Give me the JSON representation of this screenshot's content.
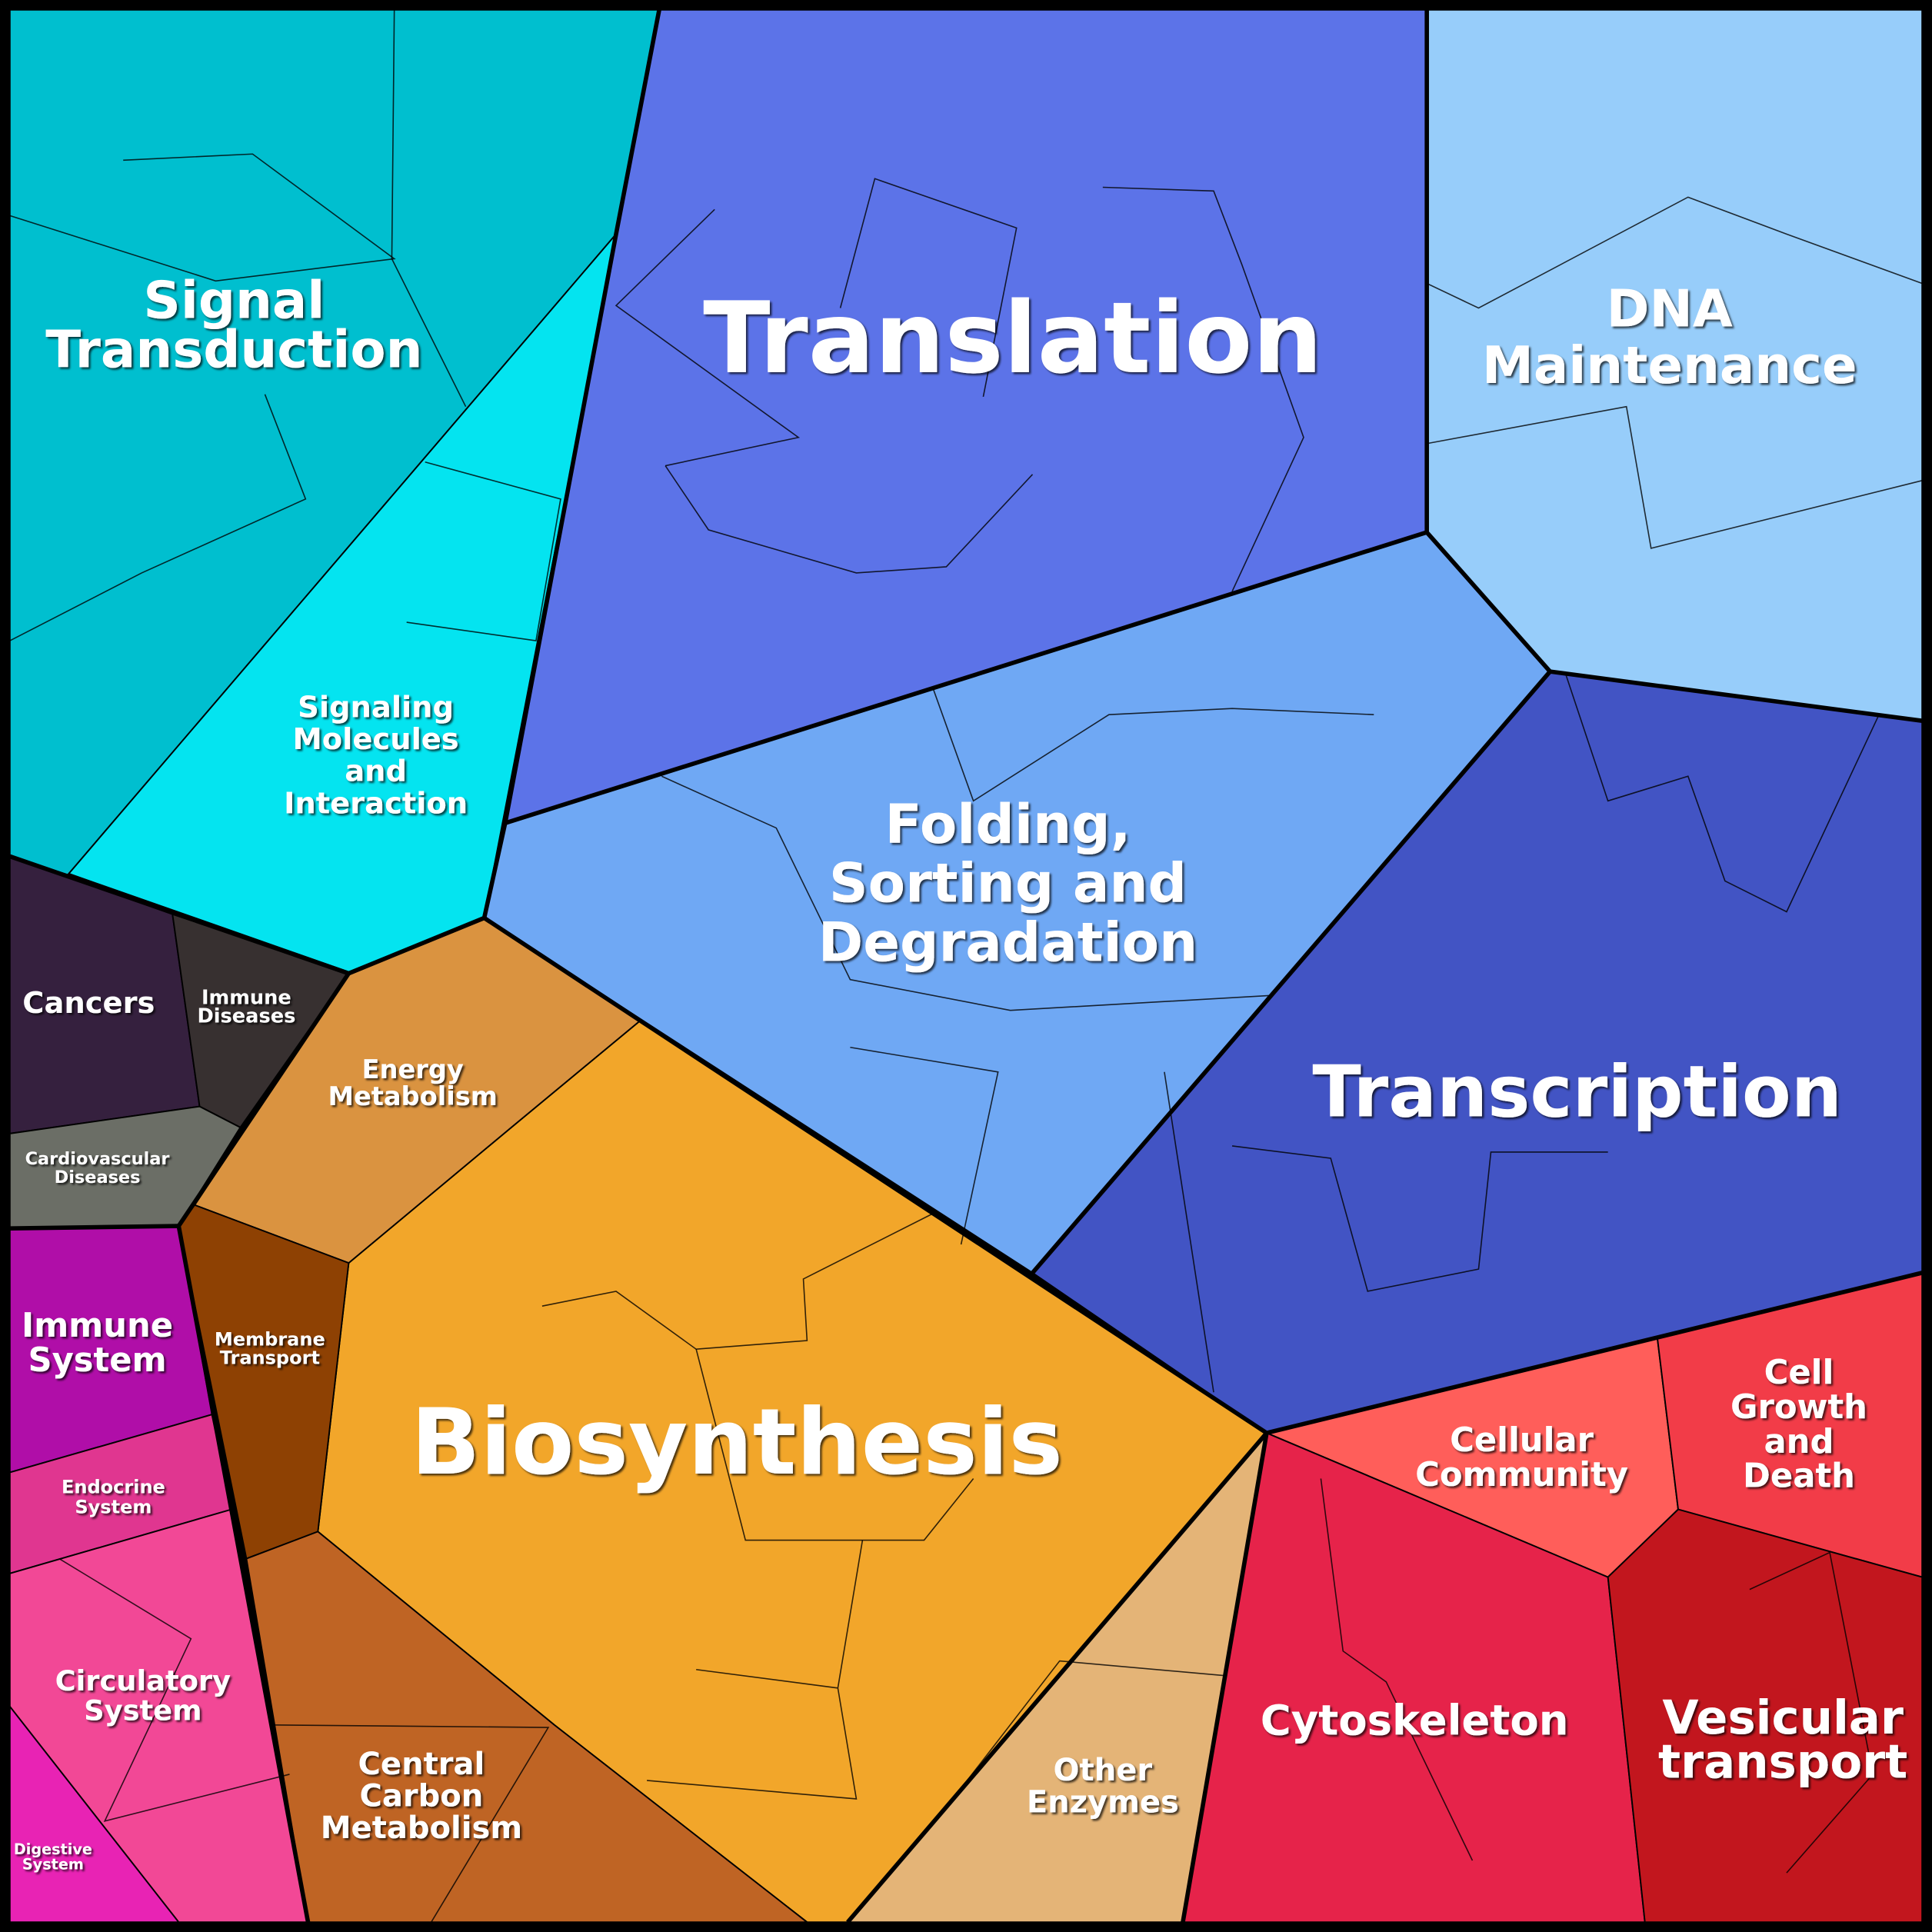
{
  "regions": [
    {
      "label": [
        "Signal",
        "Transduction"
      ]
    },
    {
      "label": [
        "Signaling",
        "Molecules",
        "and",
        "Interaction"
      ]
    },
    {
      "label": [
        "Translation"
      ]
    },
    {
      "label": [
        "DNA",
        "Maintenance"
      ]
    },
    {
      "label": [
        "Folding,",
        "Sorting and",
        "Degradation"
      ]
    },
    {
      "label": [
        "Transcription"
      ]
    },
    {
      "label": [
        "Cellular",
        "Community"
      ]
    },
    {
      "label": [
        "Cell",
        "Growth",
        "and",
        "Death"
      ]
    },
    {
      "label": [
        "Cytoskeleton"
      ]
    },
    {
      "label": [
        "Vesicular",
        "transport"
      ]
    },
    {
      "label": [
        "Other",
        "Enzymes"
      ]
    },
    {
      "label": [
        "Biosynthesis"
      ]
    },
    {
      "label": [
        "Energy",
        "Metabolism"
      ]
    },
    {
      "label": [
        "Membrane",
        "Transport"
      ]
    },
    {
      "label": [
        "Central",
        "Carbon",
        "Metabolism"
      ]
    },
    {
      "label": [
        "Cancers"
      ]
    },
    {
      "label": [
        "Immune",
        "Diseases"
      ]
    },
    {
      "label": [
        "Cardiovascular",
        "Diseases"
      ]
    },
    {
      "label": [
        "Immune",
        "System"
      ]
    },
    {
      "label": [
        "Endocrine",
        "System"
      ]
    },
    {
      "label": [
        "Circulatory",
        "System"
      ]
    },
    {
      "label": [
        "Digestive",
        "System"
      ]
    }
  ]
}
